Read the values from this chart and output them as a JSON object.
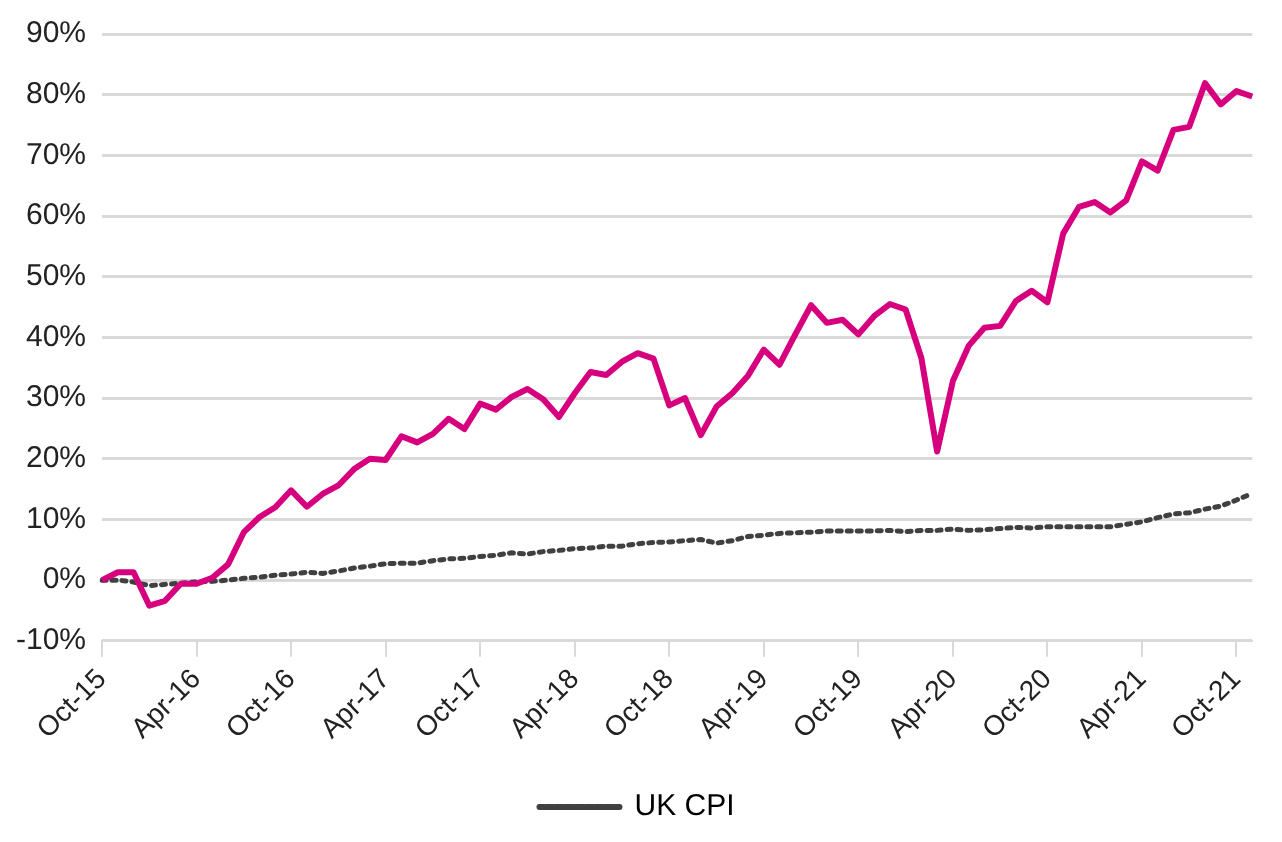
{
  "chart_data": {
    "type": "line",
    "categories": [
      "Oct-15",
      null,
      null,
      null,
      null,
      null,
      "Apr-16",
      null,
      null,
      null,
      null,
      null,
      "Oct-16",
      null,
      null,
      null,
      null,
      null,
      "Apr-17",
      null,
      null,
      null,
      null,
      null,
      "Oct-17",
      null,
      null,
      null,
      null,
      null,
      "Apr-18",
      null,
      null,
      null,
      null,
      null,
      "Oct-18",
      null,
      null,
      null,
      null,
      null,
      "Apr-19",
      null,
      null,
      null,
      null,
      null,
      "Oct-19",
      null,
      null,
      null,
      null,
      null,
      "Apr-20",
      null,
      null,
      null,
      null,
      null,
      "Oct-20",
      null,
      null,
      null,
      null,
      null,
      "Apr-21",
      null,
      null,
      null,
      null,
      null,
      "Oct-21",
      null
    ],
    "series": [
      {
        "color": "#d6007f",
        "line_style": "solid",
        "values": [
          0,
          1.3,
          1.3,
          -4.2,
          -3.4,
          -0.6,
          -0.6,
          0.4,
          2.6,
          7.9,
          10.4,
          12.0,
          14.8,
          12.1,
          14.2,
          15.6,
          18.3,
          20.0,
          19.8,
          23.7,
          22.7,
          24.1,
          26.6,
          24.9,
          29.1,
          28.1,
          30.2,
          31.5,
          29.8,
          26.9,
          30.8,
          34.3,
          33.8,
          36.0,
          37.4,
          36.5,
          28.8,
          30.0,
          23.9,
          28.6,
          30.8,
          33.7,
          38.0,
          35.5,
          40.5,
          45.3,
          42.4,
          42.9,
          40.5,
          43.5,
          45.5,
          44.6,
          36.6,
          21.2,
          32.8,
          38.6,
          41.6,
          41.9,
          46.0,
          47.7,
          45.8,
          57.1,
          61.5,
          62.3,
          60.6,
          62.6,
          69.0,
          67.5,
          74.2,
          74.7,
          81.9,
          78.4,
          80.6,
          79.7
        ]
      },
      {
        "name": "UK CPI",
        "color": "#404040",
        "line_style": "dotted",
        "values": [
          0,
          0,
          -0.3,
          -0.9,
          -0.7,
          -0.5,
          -0.3,
          -0.2,
          0,
          0.3,
          0.5,
          0.8,
          1.0,
          1.3,
          1.1,
          1.5,
          2.0,
          2.3,
          2.7,
          2.8,
          2.8,
          3.2,
          3.5,
          3.6,
          3.9,
          4.1,
          4.5,
          4.3,
          4.7,
          4.9,
          5.2,
          5.3,
          5.6,
          5.6,
          6.0,
          6.2,
          6.3,
          6.5,
          6.7,
          6.1,
          6.5,
          7.2,
          7.4,
          7.7,
          7.8,
          7.9,
          8.1,
          8.1,
          8.1,
          8.1,
          8.2,
          8.0,
          8.2,
          8.2,
          8.4,
          8.2,
          8.3,
          8.5,
          8.7,
          8.6,
          8.8,
          8.8,
          8.8,
          8.8,
          8.8,
          9.2,
          9.6,
          10.3,
          10.9,
          11.1,
          11.7,
          12.2,
          13.2,
          14.3
        ]
      }
    ],
    "ylim": [
      -10,
      90
    ],
    "yticks": [
      {
        "value": -10,
        "label": "-10%"
      },
      {
        "value": 0,
        "label": "0%"
      },
      {
        "value": 10,
        "label": "10%"
      },
      {
        "value": 20,
        "label": "20%"
      },
      {
        "value": 30,
        "label": "30%"
      },
      {
        "value": 40,
        "label": "40%"
      },
      {
        "value": 50,
        "label": "50%"
      },
      {
        "value": 60,
        "label": "60%"
      },
      {
        "value": 70,
        "label": "70%"
      },
      {
        "value": 80,
        "label": "80%"
      },
      {
        "value": 90,
        "label": "90%"
      }
    ],
    "grid": "y",
    "legend": "bottom",
    "marker": "none"
  }
}
